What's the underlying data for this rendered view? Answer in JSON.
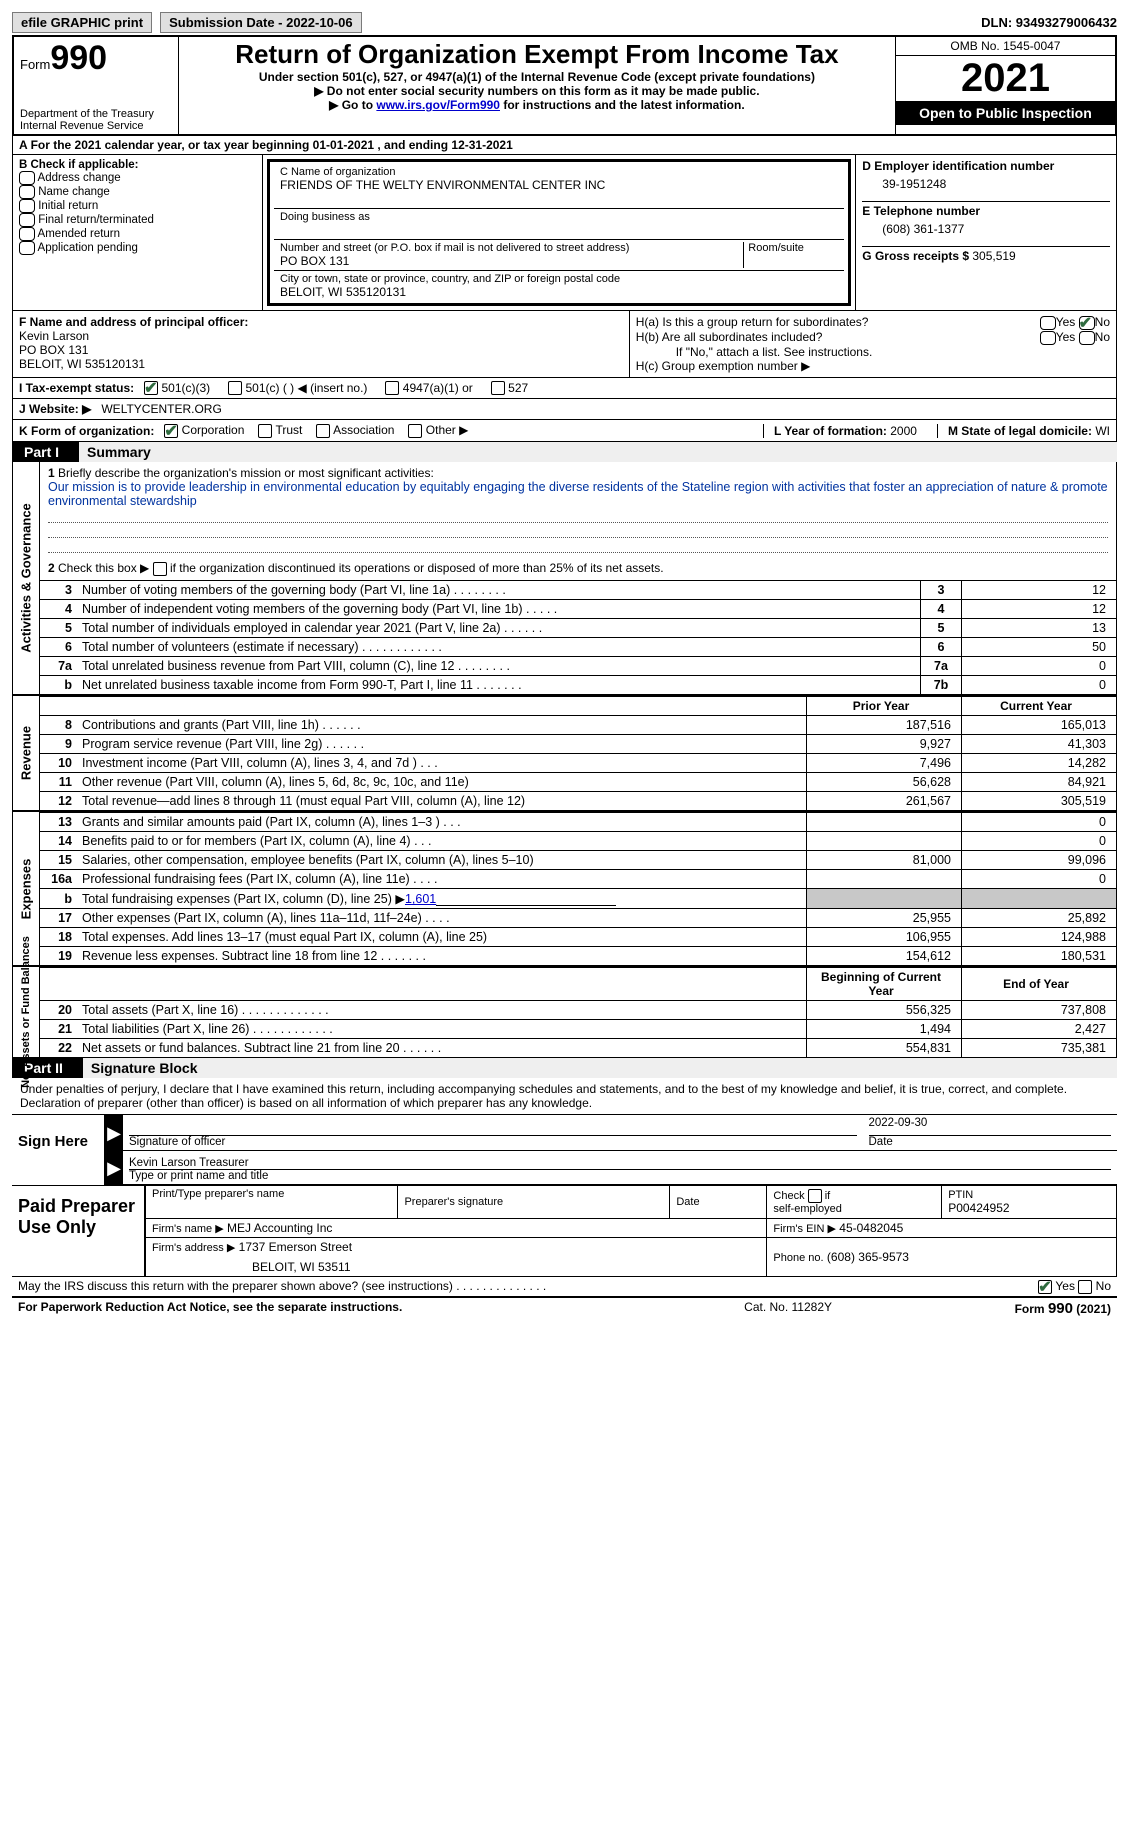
{
  "topbar": {
    "efile": "efile GRAPHIC print",
    "submission_label": "Submission Date - 2022-10-06",
    "dln": "DLN: 93493279006432"
  },
  "header": {
    "form_word": "Form",
    "form_num": "990",
    "dept": "Department of the Treasury",
    "irs": "Internal Revenue Service",
    "title": "Return of Organization Exempt From Income Tax",
    "subtitle": "Under section 501(c), 527, or 4947(a)(1) of the Internal Revenue Code (except private foundations)",
    "arrow1": "▶ Do not enter social security numbers on this form as it may be made public.",
    "arrow2_pre": "▶ Go to ",
    "arrow2_link": "www.irs.gov/Form990",
    "arrow2_post": " for instructions and the latest information.",
    "omb": "OMB No. 1545-0047",
    "year": "2021",
    "open": "Open to Public Inspection"
  },
  "A": {
    "line": "For the 2021 calendar year, or tax year beginning 01-01-2021     , and ending 12-31-2021"
  },
  "B": {
    "title": "B Check if applicable:",
    "items": [
      "Address change",
      "Name change",
      "Initial return",
      "Final return/terminated",
      "Amended return",
      "Application pending"
    ]
  },
  "C": {
    "name_label": "C Name of organization",
    "name": "FRIENDS OF THE WELTY ENVIRONMENTAL CENTER INC",
    "dba_label": "Doing business as",
    "addr_label": "Number and street (or P.O. box if mail is not delivered to street address)",
    "room_label": "Room/suite",
    "addr": "PO BOX 131",
    "city_label": "City or town, state or province, country, and ZIP or foreign postal code",
    "city": "BELOIT, WI  535120131"
  },
  "D": {
    "label": "D Employer identification number",
    "value": "39-1951248"
  },
  "E": {
    "label": "E Telephone number",
    "value": "(608) 361-1377"
  },
  "G": {
    "label": "G Gross receipts $",
    "value": "305,519"
  },
  "F": {
    "label": "F  Name and address of principal officer:",
    "name": "Kevin Larson",
    "addr1": "PO BOX 131",
    "addr2": "BELOIT, WI  535120131"
  },
  "H": {
    "a": "H(a)  Is this a group return for subordinates?",
    "b": "H(b)  Are all subordinates included?",
    "b_note": "If \"No,\" attach a list. See instructions.",
    "c": "H(c)  Group exemption number ▶",
    "yes": "Yes",
    "no": "No"
  },
  "I": {
    "label": "I    Tax-exempt status:",
    "opts": [
      "501(c)(3)",
      "501(c) (  ) ◀ (insert no.)",
      "4947(a)(1) or",
      "527"
    ]
  },
  "J": {
    "label": "J   Website: ▶",
    "value": "WELTYCENTER.ORG"
  },
  "K": {
    "label": "K Form of organization:",
    "opts": [
      "Corporation",
      "Trust",
      "Association",
      "Other ▶"
    ]
  },
  "L": {
    "label": "L Year of formation:",
    "value": "2000"
  },
  "M": {
    "label": "M State of legal domicile:",
    "value": "WI"
  },
  "part1": {
    "num": "Part I",
    "title": "Summary",
    "side_gov": "Activities & Governance",
    "side_rev": "Revenue",
    "side_exp": "Expenses",
    "side_net": "Net Assets or Fund Balances",
    "l1_label": "Briefly describe the organization's mission or most significant activities:",
    "l1_text": "Our mission is to provide leadership in environmental education by equitably engaging the diverse residents of the Stateline region with activities that foster an appreciation of nature & promote environmental stewardship",
    "l2": "Check this box ▶        if the organization discontinued its operations or disposed of more than 25% of its net assets.",
    "rows_single": [
      {
        "n": "3",
        "d": "Number of voting members of the governing body (Part VI, line 1a)   .    .    .    .    .    .    .    .",
        "b": "3",
        "v": "12"
      },
      {
        "n": "4",
        "d": "Number of independent voting members of the governing body (Part VI, line 1b)    .    .    .    .    .",
        "b": "4",
        "v": "12"
      },
      {
        "n": "5",
        "d": "Total number of individuals employed in calendar year 2021 (Part V, line 2a)    .    .    .    .    .    .",
        "b": "5",
        "v": "13"
      },
      {
        "n": "6",
        "d": "Total number of volunteers (estimate if necessary)    .    .    .    .    .    .    .    .    .    .    .    .",
        "b": "6",
        "v": "50"
      },
      {
        "n": "7a",
        "d": "Total unrelated business revenue from Part VIII, column (C), line 12    .    .    .    .    .    .    .    .",
        "b": "7a",
        "v": "0"
      },
      {
        "n": "b",
        "d": "Net unrelated business taxable income from Form 990-T, Part I, line 11    .    .    .    .    .    .    .",
        "b": "7b",
        "v": "0"
      }
    ],
    "col_prior": "Prior Year",
    "col_curr": "Current Year",
    "rows_rev": [
      {
        "n": "8",
        "d": "Contributions and grants (Part VIII, line 1h)    .    .    .    .    .    .",
        "p": "187,516",
        "c": "165,013"
      },
      {
        "n": "9",
        "d": "Program service revenue (Part VIII, line 2g)    .    .    .    .    .    .",
        "p": "9,927",
        "c": "41,303"
      },
      {
        "n": "10",
        "d": "Investment income (Part VIII, column (A), lines 3, 4, and 7d )    .    .    .",
        "p": "7,496",
        "c": "14,282"
      },
      {
        "n": "11",
        "d": "Other revenue (Part VIII, column (A), lines 5, 6d, 8c, 9c, 10c, and 11e)",
        "p": "56,628",
        "c": "84,921"
      },
      {
        "n": "12",
        "d": "Total revenue—add lines 8 through 11 (must equal Part VIII, column (A), line 12)",
        "p": "261,567",
        "c": "305,519"
      }
    ],
    "rows_exp": [
      {
        "n": "13",
        "d": "Grants and similar amounts paid (Part IX, column (A), lines 1–3 )    .    .    .",
        "p": "",
        "c": "0"
      },
      {
        "n": "14",
        "d": "Benefits paid to or for members (Part IX, column (A), line 4)    .    .    .",
        "p": "",
        "c": "0"
      },
      {
        "n": "15",
        "d": "Salaries, other compensation, employee benefits (Part IX, column (A), lines 5–10)",
        "p": "81,000",
        "c": "99,096"
      },
      {
        "n": "16a",
        "d": "Professional fundraising fees (Part IX, column (A), line 11e)    .    .    .    .",
        "p": "",
        "c": "0"
      },
      {
        "n": "b",
        "d": "Total fundraising expenses (Part IX, column (D), line 25) ▶1,601",
        "p": "SHADE",
        "c": "SHADE"
      },
      {
        "n": "17",
        "d": "Other expenses (Part IX, column (A), lines 11a–11d, 11f–24e)    .    .    .    .",
        "p": "25,955",
        "c": "25,892"
      },
      {
        "n": "18",
        "d": "Total expenses. Add lines 13–17 (must equal Part IX, column (A), line 25)",
        "p": "106,955",
        "c": "124,988"
      },
      {
        "n": "19",
        "d": "Revenue less expenses. Subtract line 18 from line 12    .    .    .    .    .    .    .",
        "p": "154,612",
        "c": "180,531"
      }
    ],
    "col_beg": "Beginning of Current Year",
    "col_end": "End of Year",
    "rows_net": [
      {
        "n": "20",
        "d": "Total assets (Part X, line 16)    .    .    .    .    .    .    .    .    .    .    .    .    .",
        "p": "556,325",
        "c": "737,808"
      },
      {
        "n": "21",
        "d": "Total liabilities (Part X, line 26)    .    .    .    .    .    .    .    .    .    .    .    .",
        "p": "1,494",
        "c": "2,427"
      },
      {
        "n": "22",
        "d": "Net assets or fund balances. Subtract line 21 from line 20    .    .    .    .    .    .",
        "p": "554,831",
        "c": "735,381"
      }
    ]
  },
  "part2": {
    "num": "Part II",
    "title": "Signature Block",
    "decl": "Under penalties of perjury, I declare that I have examined this return, including accompanying schedules and statements, and to the best of my knowledge and belief, it is true, correct, and complete. Declaration of preparer (other than officer) is based on all information of which preparer has any knowledge.",
    "sign_here": "Sign Here",
    "sig_officer": "Signature of officer",
    "sig_date": "2022-09-30",
    "date_lbl": "Date",
    "sig_name": "Kevin Larson  Treasurer",
    "sig_name_lbl": "Type or print name and title",
    "paid": "Paid Preparer Use Only",
    "p_name_lbl": "Print/Type preparer's name",
    "p_sig_lbl": "Preparer's signature",
    "p_date_lbl": "Date",
    "p_check": "Check          if self-employed",
    "ptin_lbl": "PTIN",
    "ptin": "P00424952",
    "firm_name_lbl": "Firm's name     ▶",
    "firm_name": "MEJ Accounting Inc",
    "firm_ein_lbl": "Firm's EIN ▶",
    "firm_ein": "45-0482045",
    "firm_addr_lbl": "Firm's address ▶",
    "firm_addr1": "1737 Emerson Street",
    "firm_addr2": "BELOIT, WI  53511",
    "phone_lbl": "Phone no.",
    "phone": "(608) 365-9573",
    "discuss": "May the IRS discuss this return with the preparer shown above? (see instructions)    .    .    .    .    .    .    .    .    .    .    .    .    .    ."
  },
  "footer": {
    "paperwork": "For Paperwork Reduction Act Notice, see the separate instructions.",
    "cat": "Cat. No. 11282Y",
    "form": "Form 990 (2021)"
  }
}
